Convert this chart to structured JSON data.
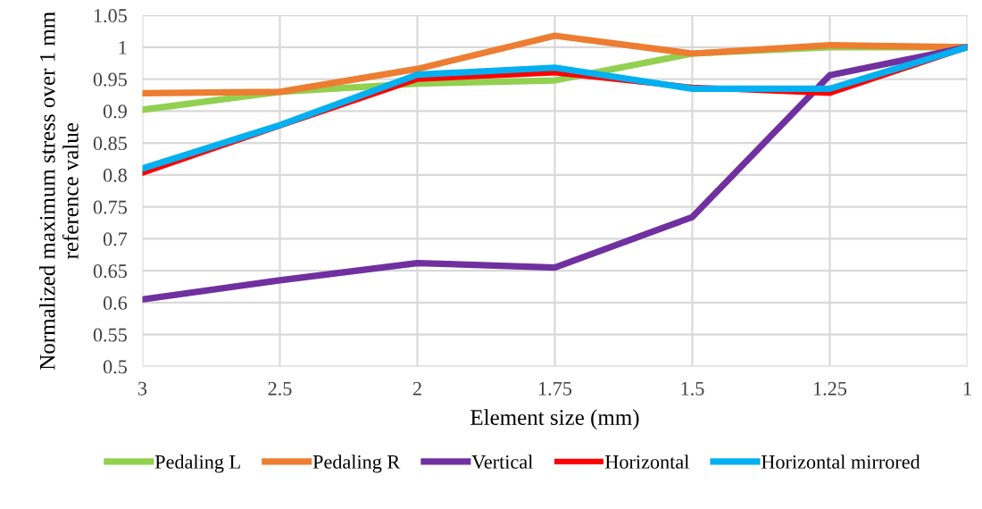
{
  "chart_data": {
    "type": "line",
    "xlabel": "Element size (mm)",
    "ylabel": "Normalized maximum stress over 1 mm\nreference value",
    "categories": [
      "3",
      "2.5",
      "2",
      "1.75",
      "1.5",
      "1.25",
      "1"
    ],
    "series": [
      {
        "name": "Pedaling L",
        "color": "#92d050",
        "values": [
          0.902,
          0.93,
          0.943,
          0.948,
          0.99,
          1.0,
          1.0
        ]
      },
      {
        "name": "Pedaling R",
        "color": "#ed7d31",
        "values": [
          0.928,
          0.93,
          0.966,
          1.018,
          0.99,
          1.003,
          1.0
        ]
      },
      {
        "name": "Vertical",
        "color": "#7030a0",
        "values": [
          0.605,
          0.635,
          0.662,
          0.655,
          0.734,
          0.956,
          1.0
        ]
      },
      {
        "name": "Horizontal",
        "color": "#ff0000",
        "values": [
          0.803,
          0.877,
          0.95,
          0.96,
          0.937,
          0.928,
          1.0
        ]
      },
      {
        "name": "Horizontal mirrored",
        "color": "#00b0f0",
        "values": [
          0.81,
          0.878,
          0.957,
          0.968,
          0.935,
          0.935,
          1.0
        ]
      }
    ],
    "ylim": [
      0.5,
      1.05
    ],
    "yticks": [
      0.5,
      0.55,
      0.6,
      0.65,
      0.7,
      0.75,
      0.8,
      0.85,
      0.9,
      0.95,
      1,
      1.05
    ],
    "grid": true,
    "legend": "bottom",
    "marker": "none",
    "line_style": "solid"
  }
}
